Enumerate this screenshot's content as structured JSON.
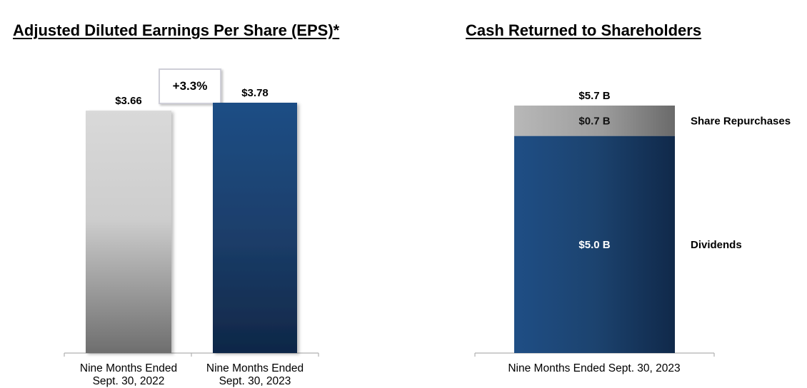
{
  "chart_data": [
    {
      "type": "bar",
      "title": "Adjusted Diluted Earnings Per Share (EPS)*",
      "categories": [
        [
          "Nine Months Ended",
          "Sept. 30, 2022"
        ],
        [
          "Nine Months Ended",
          "Sept. 30, 2023"
        ]
      ],
      "values": [
        3.66,
        3.78
      ],
      "value_labels": [
        "$3.66",
        "$3.78"
      ],
      "change_annotation": "+3.3%",
      "ylim": [
        0,
        4.2
      ],
      "grid": false,
      "colors": [
        "#9a9a9a",
        "#1f497d"
      ]
    },
    {
      "type": "bar",
      "stacked": true,
      "title": "Cash Returned to Shareholders",
      "categories": [
        "Nine Months Ended Sept. 30, 2023"
      ],
      "total_label": "$5.7 B",
      "total": 5.7,
      "series": [
        {
          "name": "Dividends",
          "values": [
            5.0
          ],
          "value_label": "$5.0 B",
          "color": "#1f497d"
        },
        {
          "name": "Share Repurchases",
          "values": [
            0.7
          ],
          "value_label": "$0.7 B",
          "color": "#8c8c8c"
        }
      ],
      "ylim": [
        0,
        5.7
      ],
      "grid": false,
      "legend_placement": "right"
    }
  ]
}
